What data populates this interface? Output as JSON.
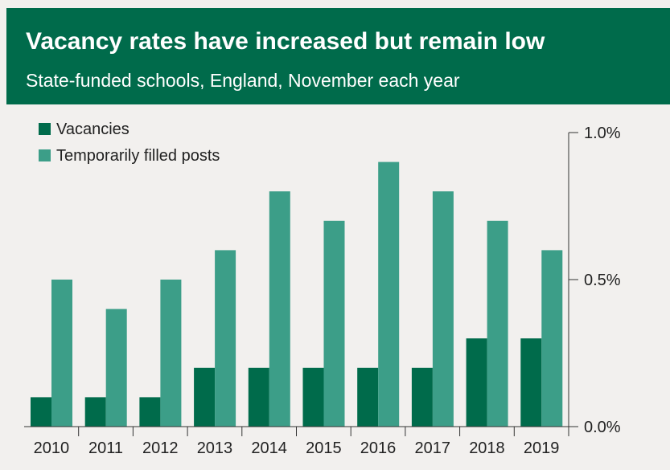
{
  "header": {
    "title": "Vacancy rates have increased but remain low",
    "subtitle": "State-funded schools, England, November each year"
  },
  "colors": {
    "header_bg": "#006b4b",
    "vacancies": "#006b4b",
    "temporary": "#3c9e88",
    "background": "#f2f0ee",
    "axis": "#333333",
    "text": "#222222"
  },
  "chart_data": {
    "type": "bar",
    "title": "Vacancy rates have increased but remain low",
    "subtitle": "State-funded schools, England, November each year",
    "categories": [
      "2010",
      "2011",
      "2012",
      "2013",
      "2014",
      "2015",
      "2016",
      "2017",
      "2018",
      "2019"
    ],
    "series": [
      {
        "name": "Vacancies",
        "values": [
          0.1,
          0.1,
          0.1,
          0.2,
          0.2,
          0.2,
          0.2,
          0.2,
          0.3,
          0.3
        ]
      },
      {
        "name": "Temporarily filled posts",
        "values": [
          0.5,
          0.4,
          0.5,
          0.6,
          0.8,
          0.7,
          0.9,
          0.8,
          0.7,
          0.6
        ]
      }
    ],
    "xlabel": "",
    "ylabel": "",
    "ylim": [
      0,
      1.0
    ],
    "yticks": [
      0.0,
      0.5,
      1.0
    ],
    "ytick_labels": [
      "0.0%",
      "0.5%",
      "1.0%"
    ],
    "y_axis_side": "right",
    "grid": false,
    "legend_position": "top-left"
  }
}
